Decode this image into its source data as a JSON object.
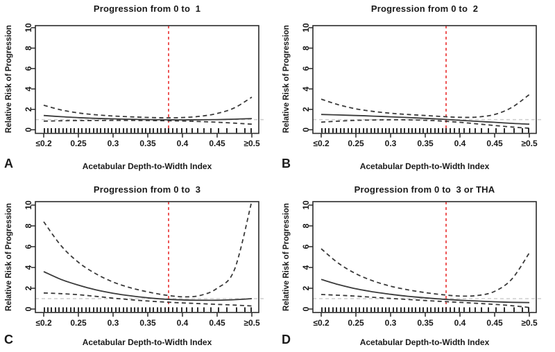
{
  "figure": {
    "background": "#ffffff",
    "x_axis_label": "Acetabular Depth-to-Width Index",
    "y_axis_label": "Relative Risk of Progression",
    "x_tick_labels": [
      "≤0.2",
      "0.25",
      "0.3",
      "0.35",
      "0.4",
      "0.45",
      "≥0.5"
    ],
    "x_tick_values": [
      0.2,
      0.25,
      0.3,
      0.35,
      0.4,
      0.45,
      0.5
    ],
    "y_tick_labels": [
      "0",
      "2",
      "4",
      "6",
      "8",
      "10"
    ],
    "y_tick_values": [
      0,
      2,
      4,
      6,
      8,
      10
    ],
    "x_range": [
      0.2,
      0.5
    ],
    "y_range": [
      0,
      10
    ],
    "reference_line_x": 0.38,
    "reference_line_y": 1,
    "grid": "off",
    "legend": "none",
    "colors": {
      "curve": "#3a3a3a",
      "axis": "#2b2b2b",
      "text": "#1a1a1a",
      "reference_red": "#ee5858",
      "reference_gray": "#cdcdcd",
      "rug": "#141414"
    },
    "rug_x": [
      0.201,
      0.206,
      0.211,
      0.217,
      0.222,
      0.228,
      0.233,
      0.239,
      0.244,
      0.25,
      0.255,
      0.261,
      0.266,
      0.272,
      0.277,
      0.282,
      0.288,
      0.293,
      0.298,
      0.304,
      0.309,
      0.315,
      0.32,
      0.326,
      0.331,
      0.336,
      0.342,
      0.347,
      0.353,
      0.358,
      0.364,
      0.369,
      0.375,
      0.38,
      0.386,
      0.392,
      0.399,
      0.406,
      0.414,
      0.422,
      0.431,
      0.441,
      0.452,
      0.464,
      0.478,
      0.49,
      0.499
    ]
  },
  "chart_data": [
    {
      "type": "line",
      "letter": "A",
      "title": "Progression from 0 to  1",
      "xlabel": "Acetabular Depth-to-Width Index",
      "ylabel": "Relative Risk of Progression",
      "ylim": [
        0,
        10
      ],
      "x": [
        0.2,
        0.225,
        0.25,
        0.275,
        0.3,
        0.325,
        0.35,
        0.375,
        0.4,
        0.425,
        0.45,
        0.475,
        0.5
      ],
      "series": [
        {
          "name": "estimate",
          "style": "solid",
          "values": [
            1.4,
            1.28,
            1.19,
            1.12,
            1.07,
            1.03,
            1.0,
            0.98,
            0.97,
            0.98,
            1.0,
            1.04,
            1.1
          ]
        },
        {
          "name": "upper-95pct-ci",
          "style": "dashed",
          "values": [
            2.4,
            1.95,
            1.65,
            1.47,
            1.35,
            1.27,
            1.21,
            1.17,
            1.2,
            1.32,
            1.6,
            2.15,
            3.2
          ]
        },
        {
          "name": "lower-95pct-ci",
          "style": "dashed",
          "values": [
            0.85,
            0.88,
            0.9,
            0.91,
            0.92,
            0.92,
            0.91,
            0.89,
            0.86,
            0.81,
            0.74,
            0.65,
            0.55
          ]
        }
      ]
    },
    {
      "type": "line",
      "letter": "B",
      "title": "Progression from 0 to  2",
      "xlabel": "Acetabular Depth-to-Width Index",
      "ylabel": "Relative Risk of Progression",
      "ylim": [
        0,
        10
      ],
      "x": [
        0.2,
        0.225,
        0.25,
        0.275,
        0.3,
        0.325,
        0.35,
        0.375,
        0.4,
        0.425,
        0.45,
        0.475,
        0.5
      ],
      "series": [
        {
          "name": "estimate",
          "style": "solid",
          "values": [
            1.5,
            1.45,
            1.4,
            1.34,
            1.27,
            1.2,
            1.12,
            1.03,
            0.93,
            0.83,
            0.73,
            0.63,
            0.55
          ]
        },
        {
          "name": "upper-95pct-ci",
          "style": "dashed",
          "values": [
            3.0,
            2.45,
            2.05,
            1.8,
            1.62,
            1.5,
            1.4,
            1.3,
            1.22,
            1.25,
            1.5,
            2.2,
            3.45
          ]
        },
        {
          "name": "lower-95pct-ci",
          "style": "dashed",
          "values": [
            0.75,
            0.85,
            0.92,
            0.96,
            0.98,
            0.97,
            0.93,
            0.85,
            0.73,
            0.58,
            0.42,
            0.27,
            0.15
          ]
        }
      ]
    },
    {
      "type": "line",
      "letter": "C",
      "title": "Progression from 0 to  3",
      "xlabel": "Acetabular Depth-to-Width Index",
      "ylabel": "Relative Risk of Progression",
      "ylim": [
        0,
        10
      ],
      "x": [
        0.2,
        0.225,
        0.25,
        0.275,
        0.3,
        0.325,
        0.35,
        0.375,
        0.4,
        0.425,
        0.45,
        0.475,
        0.5
      ],
      "series": [
        {
          "name": "estimate",
          "style": "solid",
          "values": [
            3.6,
            2.85,
            2.3,
            1.85,
            1.52,
            1.27,
            1.08,
            0.95,
            0.88,
            0.85,
            0.85,
            0.9,
            1.0
          ]
        },
        {
          "name": "upper-95pct-ci",
          "style": "dashed",
          "values": [
            8.4,
            6.1,
            4.5,
            3.4,
            2.6,
            2.05,
            1.65,
            1.35,
            1.18,
            1.3,
            2.0,
            3.8,
            10.4
          ]
        },
        {
          "name": "lower-95pct-ci",
          "style": "dashed",
          "values": [
            1.55,
            1.48,
            1.38,
            1.22,
            1.05,
            0.9,
            0.77,
            0.67,
            0.59,
            0.52,
            0.45,
            0.38,
            0.3
          ]
        }
      ]
    },
    {
      "type": "line",
      "letter": "D",
      "title": "Progression from 0 to  3 or THA",
      "xlabel": "Acetabular Depth-to-Width Index",
      "ylabel": "Relative Risk of Progression",
      "ylim": [
        0,
        10
      ],
      "x": [
        0.2,
        0.225,
        0.25,
        0.275,
        0.3,
        0.325,
        0.35,
        0.375,
        0.4,
        0.425,
        0.45,
        0.475,
        0.5
      ],
      "series": [
        {
          "name": "estimate",
          "style": "solid",
          "values": [
            2.85,
            2.35,
            1.95,
            1.65,
            1.42,
            1.23,
            1.08,
            0.95,
            0.85,
            0.77,
            0.7,
            0.65,
            0.62
          ]
        },
        {
          "name": "upper-95pct-ci",
          "style": "dashed",
          "values": [
            5.8,
            4.4,
            3.4,
            2.7,
            2.2,
            1.85,
            1.58,
            1.38,
            1.25,
            1.3,
            1.7,
            2.9,
            5.4
          ]
        },
        {
          "name": "lower-95pct-ci",
          "style": "dashed",
          "values": [
            1.4,
            1.33,
            1.24,
            1.13,
            1.02,
            0.92,
            0.82,
            0.73,
            0.64,
            0.55,
            0.45,
            0.32,
            0.15
          ]
        }
      ]
    }
  ]
}
